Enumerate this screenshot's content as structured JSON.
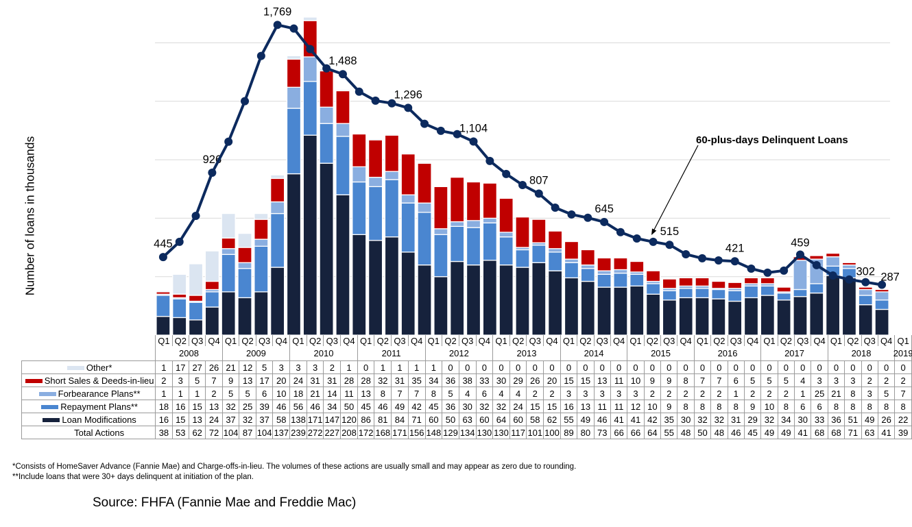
{
  "chart_data": {
    "type": "bar",
    "subtype": "stacked bar with line overlay and data table",
    "title": "",
    "xlabel": "",
    "ylabel": "Number of loans in thousands",
    "ylim": [
      0,
      300
    ],
    "y2lim": [
      0,
      2000
    ],
    "grid": true,
    "grid_step": 50,
    "legend_placement": "table-bottom",
    "categories": [
      "2008 Q1",
      "2008 Q2",
      "2008 Q3",
      "2008 Q4",
      "2009 Q1",
      "2009 Q2",
      "2009 Q3",
      "2009 Q4",
      "2010 Q1",
      "2010 Q2",
      "2010 Q3",
      "2010 Q4",
      "2011 Q1",
      "2011 Q2",
      "2011 Q3",
      "2011 Q4",
      "2012 Q1",
      "2012 Q2",
      "2012 Q3",
      "2012 Q4",
      "2013 Q1",
      "2013 Q2",
      "2013 Q3",
      "2013 Q4",
      "2014 Q1",
      "2014 Q2",
      "2014 Q3",
      "2014 Q4",
      "2015 Q1",
      "2015 Q2",
      "2015 Q3",
      "2015 Q4",
      "2016 Q1",
      "2016 Q2",
      "2016 Q3",
      "2016 Q4",
      "2017 Q1",
      "2017 Q2",
      "2017 Q3",
      "2017 Q4",
      "2018 Q1",
      "2018 Q2",
      "2018 Q3",
      "2018 Q4",
      "2019 Q1"
    ],
    "quarter_labels": [
      "Q1",
      "Q2",
      "Q3",
      "Q4",
      "Q1",
      "Q2",
      "Q3",
      "Q4",
      "Q1",
      "Q2",
      "Q3",
      "Q4",
      "Q1",
      "Q2",
      "Q3",
      "Q4",
      "Q1",
      "Q2",
      "Q3",
      "Q4",
      "Q1",
      "Q2",
      "Q3",
      "Q4",
      "Q1",
      "Q2",
      "Q3",
      "Q4",
      "Q1",
      "Q2",
      "Q3",
      "Q4",
      "Q1",
      "Q2",
      "Q3",
      "Q4",
      "Q1",
      "Q2",
      "Q3",
      "Q4",
      "Q1",
      "Q2",
      "Q3",
      "Q4",
      "Q1"
    ],
    "years": [
      {
        "label": "2008",
        "quarters": 4
      },
      {
        "label": "2009",
        "quarters": 4
      },
      {
        "label": "2010",
        "quarters": 4
      },
      {
        "label": "2011",
        "quarters": 4
      },
      {
        "label": "2012",
        "quarters": 4
      },
      {
        "label": "2013",
        "quarters": 4
      },
      {
        "label": "2014",
        "quarters": 4
      },
      {
        "label": "2015",
        "quarters": 4
      },
      {
        "label": "2016",
        "quarters": 4
      },
      {
        "label": "2017",
        "quarters": 4
      },
      {
        "label": "2018",
        "quarters": 4
      },
      {
        "label": "2019",
        "quarters": 1
      }
    ],
    "stack_order": [
      "Loan Modifications",
      "Repayment Plans**",
      "Forbearance Plans**",
      "Short Sales & Deeds-in-lieu",
      "Other*"
    ],
    "line_series": "60-plus-days Delinquent Loans",
    "series": [
      {
        "name": "Other*",
        "key": "other",
        "type": "bar",
        "color": "#DBE5F1",
        "values": [
          1,
          17,
          27,
          26,
          21,
          12,
          5,
          3,
          3,
          3,
          2,
          1,
          0,
          1,
          1,
          1,
          1,
          0,
          0,
          0,
          0,
          0,
          0,
          0,
          0,
          0,
          0,
          0,
          0,
          0,
          0,
          0,
          0,
          0,
          0,
          0,
          0,
          0,
          0,
          0,
          0,
          0,
          0,
          0,
          0
        ]
      },
      {
        "name": "Short Sales & Deeds-in-lieu",
        "key": "short-sales",
        "type": "bar",
        "color": "#C00000",
        "values": [
          2,
          3,
          5,
          7,
          9,
          13,
          17,
          20,
          24,
          31,
          31,
          28,
          28,
          32,
          31,
          35,
          34,
          36,
          38,
          33,
          30,
          29,
          26,
          20,
          15,
          15,
          13,
          11,
          10,
          9,
          9,
          8,
          7,
          7,
          6,
          5,
          5,
          5,
          4,
          3,
          3,
          3,
          2,
          2,
          2
        ]
      },
      {
        "name": "Forbearance Plans**",
        "key": "forbearance",
        "type": "bar",
        "color": "#8AAEE0",
        "values": [
          1,
          1,
          1,
          2,
          5,
          5,
          6,
          10,
          18,
          21,
          14,
          11,
          13,
          8,
          7,
          7,
          8,
          5,
          4,
          6,
          4,
          4,
          2,
          2,
          3,
          3,
          3,
          3,
          3,
          2,
          2,
          2,
          2,
          2,
          1,
          2,
          2,
          2,
          1,
          25,
          21,
          8,
          3,
          5,
          7
        ]
      },
      {
        "name": "Repayment Plans**",
        "key": "repayment",
        "type": "bar",
        "color": "#4A86D0",
        "values": [
          18,
          16,
          15,
          13,
          32,
          25,
          39,
          46,
          56,
          46,
          34,
          50,
          45,
          46,
          49,
          42,
          45,
          36,
          30,
          32,
          32,
          24,
          15,
          15,
          16,
          13,
          11,
          11,
          12,
          10,
          9,
          8,
          8,
          8,
          8,
          9,
          10,
          8,
          6,
          6,
          8,
          8,
          8,
          8,
          8
        ]
      },
      {
        "name": "Loan Modifications",
        "key": "loan-modifications",
        "type": "bar",
        "color": "#16223C",
        "values": [
          16,
          15,
          13,
          24,
          37,
          32,
          37,
          58,
          138,
          171,
          147,
          120,
          86,
          81,
          84,
          71,
          60,
          50,
          63,
          60,
          64,
          60,
          58,
          62,
          55,
          49,
          46,
          41,
          41,
          42,
          35,
          30,
          32,
          32,
          31,
          29,
          32,
          34,
          30,
          33,
          36,
          51,
          49,
          26,
          22
        ]
      },
      {
        "name": "Total Actions",
        "key": "total-actions",
        "type": "table",
        "color": null,
        "values": [
          38,
          53,
          62,
          72,
          104,
          87,
          104,
          137,
          239,
          272,
          227,
          208,
          172,
          168,
          171,
          156,
          148,
          129,
          134,
          130,
          130,
          117,
          101,
          100,
          89,
          80,
          73,
          66,
          66,
          64,
          55,
          48,
          50,
          48,
          46,
          45,
          49,
          49,
          41,
          68,
          68,
          71,
          63,
          41,
          39
        ]
      },
      {
        "name": "60-plus-days Delinquent Loans",
        "key": "delinquent-loans",
        "type": "line",
        "axis": "secondary",
        "color": "#0C2A5E",
        "values": [
          445,
          532,
          680,
          926,
          1103,
          1334,
          1592,
          1769,
          1748,
          1631,
          1521,
          1488,
          1388,
          1337,
          1322,
          1296,
          1205,
          1165,
          1146,
          1104,
          993,
          919,
          856,
          807,
          727,
          688,
          669,
          645,
          587,
          551,
          532,
          515,
          461,
          438,
          426,
          421,
          379,
          356,
          368,
          459,
          399,
          340,
          317,
          302,
          287
        ]
      }
    ],
    "data_labels": [
      {
        "category": "2008 Q1",
        "text": "445"
      },
      {
        "category": "2008 Q4",
        "text": "926"
      },
      {
        "category": "2009 Q4",
        "text": "1,769"
      },
      {
        "category": "2010 Q4",
        "text": "1,488"
      },
      {
        "category": "2011 Q4",
        "text": "1,296"
      },
      {
        "category": "2012 Q4",
        "text": "1,104"
      },
      {
        "category": "2013 Q4",
        "text": "807"
      },
      {
        "category": "2014 Q4",
        "text": "645"
      },
      {
        "category": "2015 Q4",
        "text": "515"
      },
      {
        "category": "2016 Q4",
        "text": "421"
      },
      {
        "category": "2017 Q4",
        "text": "459"
      },
      {
        "category": "2018 Q4",
        "text": "302"
      },
      {
        "category": "2019 Q1",
        "text": "287"
      }
    ],
    "annotation": {
      "text": "60-plus-days Delinquent Loans",
      "points_to": "2015 Q3"
    }
  },
  "footnotes": [
    "*Consists of HomeSaver Advance (Fannie Mae) and Charge-offs-in-lieu. The volumes of these actions are usually small and may appear as zero due to rounding.",
    "**Include loans that were 30+ days delinquent at initiation of the plan."
  ],
  "source": "Source: FHFA (Fannie Mae and Freddie Mac)"
}
